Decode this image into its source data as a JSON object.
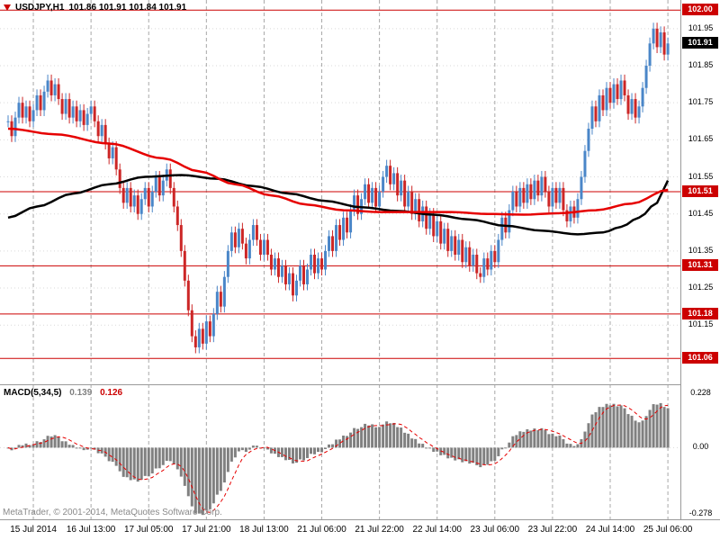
{
  "title": {
    "symbol_period": "USDJPY,H1",
    "ohlc": "101.86 101.91 101.84 101.91"
  },
  "footer": {
    "credit": "MetaTrader, © 2001-2014, MetaQuotes Software Corp."
  },
  "chart_data": {
    "type": "candlestick",
    "symbol": "USDJPY",
    "timeframe": "H1",
    "quote": {
      "open": 101.86,
      "high": 101.91,
      "low": 101.84,
      "close": 101.91
    },
    "x_labels": [
      "15 Jul 2014",
      "16 Jul 13:00",
      "17 Jul 05:00",
      "17 Jul 21:00",
      "18 Jul 13:00",
      "21 Jul 06:00",
      "21 Jul 22:00",
      "22 Jul 14:00",
      "23 Jul 06:00",
      "23 Jul 22:00",
      "24 Jul 14:00",
      "25 Jul 06:00"
    ],
    "y_ticks": [
      101.95,
      101.85,
      101.75,
      101.65,
      101.55,
      101.45,
      101.35,
      101.25,
      101.15
    ],
    "ylim": [
      101.0,
      102.02
    ],
    "horizontal_lines": [
      102.0,
      101.51,
      101.31,
      101.18,
      101.06
    ],
    "current_price": 101.91,
    "current_price_label": "101.91",
    "grid": true,
    "legend_position": "none",
    "wick": 0.016,
    "closes": [
      101.7,
      101.66,
      101.71,
      101.75,
      101.71,
      101.74,
      101.7,
      101.73,
      101.77,
      101.73,
      101.78,
      101.81,
      101.77,
      101.8,
      101.76,
      101.72,
      101.76,
      101.71,
      101.74,
      101.7,
      101.73,
      101.69,
      101.72,
      101.74,
      101.7,
      101.66,
      101.69,
      101.64,
      101.6,
      101.63,
      101.57,
      101.52,
      101.48,
      101.52,
      101.47,
      101.5,
      101.45,
      101.49,
      101.52,
      101.47,
      101.51,
      101.55,
      101.5,
      101.54,
      101.57,
      101.52,
      101.47,
      101.42,
      101.35,
      101.27,
      101.19,
      101.12,
      101.09,
      101.14,
      101.1,
      101.16,
      101.12,
      101.18,
      101.24,
      101.2,
      101.28,
      101.35,
      101.4,
      101.36,
      101.41,
      101.37,
      101.33,
      101.38,
      101.42,
      101.38,
      101.34,
      101.38,
      101.34,
      101.3,
      101.33,
      101.28,
      101.31,
      101.26,
      101.29,
      101.23,
      101.27,
      101.31,
      101.26,
      101.3,
      101.34,
      101.29,
      101.33,
      101.3,
      101.35,
      101.39,
      101.35,
      101.42,
      101.38,
      101.44,
      101.4,
      101.46,
      101.5,
      101.45,
      101.49,
      101.53,
      101.48,
      101.52,
      101.47,
      101.51,
      101.55,
      101.58,
      101.53,
      101.56,
      101.5,
      101.54,
      101.47,
      101.51,
      101.45,
      101.49,
      101.43,
      101.47,
      101.41,
      101.45,
      101.39,
      101.43,
      101.37,
      101.41,
      101.35,
      101.39,
      101.34,
      101.38,
      101.32,
      101.36,
      101.31,
      101.34,
      101.29,
      101.28,
      101.33,
      101.3,
      101.35,
      101.32,
      101.38,
      101.44,
      101.4,
      101.46,
      101.51,
      101.47,
      101.52,
      101.48,
      101.53,
      101.49,
      101.54,
      101.5,
      101.55,
      101.51,
      101.47,
      101.52,
      101.48,
      101.52,
      101.46,
      101.43,
      101.47,
      101.44,
      101.49,
      101.55,
      101.62,
      101.68,
      101.74,
      101.7,
      101.77,
      101.73,
      101.79,
      101.75,
      101.8,
      101.76,
      101.81,
      101.77,
      101.72,
      101.76,
      101.71,
      101.74,
      101.79,
      101.85,
      101.91,
      101.95,
      101.9,
      101.94,
      101.88,
      101.91
    ],
    "ma_red_points": [
      [
        0,
        101.68
      ],
      [
        13,
        101.665
      ],
      [
        28,
        101.64
      ],
      [
        43,
        101.6
      ],
      [
        53,
        101.565
      ],
      [
        63,
        101.53
      ],
      [
        73,
        101.5
      ],
      [
        83,
        101.475
      ],
      [
        93,
        101.46
      ],
      [
        103,
        101.455
      ],
      [
        113,
        101.455
      ],
      [
        123,
        101.455
      ],
      [
        133,
        101.45
      ],
      [
        143,
        101.448
      ],
      [
        153,
        101.452
      ],
      [
        163,
        101.46
      ],
      [
        173,
        101.478
      ],
      [
        183,
        101.515
      ]
    ],
    "ma_black_points": [
      [
        0,
        101.44
      ],
      [
        8,
        101.47
      ],
      [
        18,
        101.505
      ],
      [
        28,
        101.53
      ],
      [
        38,
        101.55
      ],
      [
        48,
        101.555
      ],
      [
        58,
        101.545
      ],
      [
        68,
        101.525
      ],
      [
        78,
        101.505
      ],
      [
        88,
        101.485
      ],
      [
        98,
        101.468
      ],
      [
        108,
        101.458
      ],
      [
        118,
        101.448
      ],
      [
        128,
        101.435
      ],
      [
        138,
        101.418
      ],
      [
        148,
        101.405
      ],
      [
        158,
        101.395
      ],
      [
        165,
        101.4
      ],
      [
        170,
        101.415
      ],
      [
        175,
        101.44
      ],
      [
        180,
        101.48
      ],
      [
        183,
        101.54
      ]
    ],
    "colors": {
      "up": "#4a86c8",
      "down": "#cc2626",
      "ma_red": "#e60000",
      "ma_black": "#000000",
      "hline": "#cc0000",
      "grid": "#a8a8a8",
      "hgrid": "#d9d9d9",
      "histogram": "#808080",
      "signal": "#e60000",
      "badge_red": "#cc0000",
      "badge_black": "#000000"
    },
    "macd": {
      "label": "MACD(5,34,5)",
      "value_main": "0.139",
      "value_signal": "0.126",
      "fast": 5,
      "slow": 34,
      "signal_period": 5,
      "y_ticks": [
        "0.228",
        "0.00",
        "-0.278"
      ],
      "y_tick_values": [
        0.228,
        0,
        -0.278
      ],
      "ylim": [
        -0.295,
        0.26
      ]
    }
  }
}
